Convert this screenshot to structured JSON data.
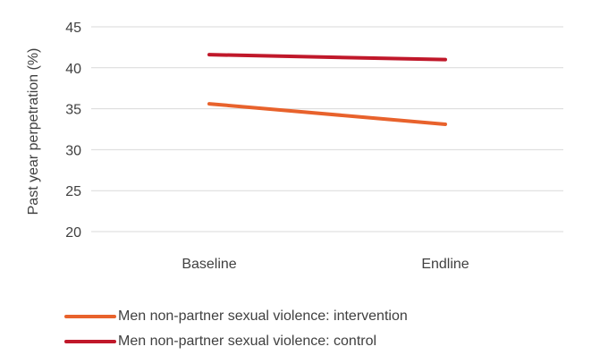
{
  "chart_data": {
    "type": "line",
    "categories": [
      "Baseline",
      "Endline"
    ],
    "series": [
      {
        "name": "Men non-partner sexual violence: intervention",
        "values": [
          35.6,
          33.1
        ],
        "color": "#E8622C"
      },
      {
        "name": "Men non-partner sexual violence: control",
        "values": [
          41.6,
          41.0
        ],
        "color": "#C0182A"
      }
    ],
    "ylabel": "Past year perpetration (%)",
    "ylim": [
      20,
      45
    ],
    "yticks": [
      20,
      25,
      30,
      35,
      40,
      45
    ],
    "grid": true,
    "grid_color": "#D9D9D9",
    "legend_position": "bottom"
  }
}
